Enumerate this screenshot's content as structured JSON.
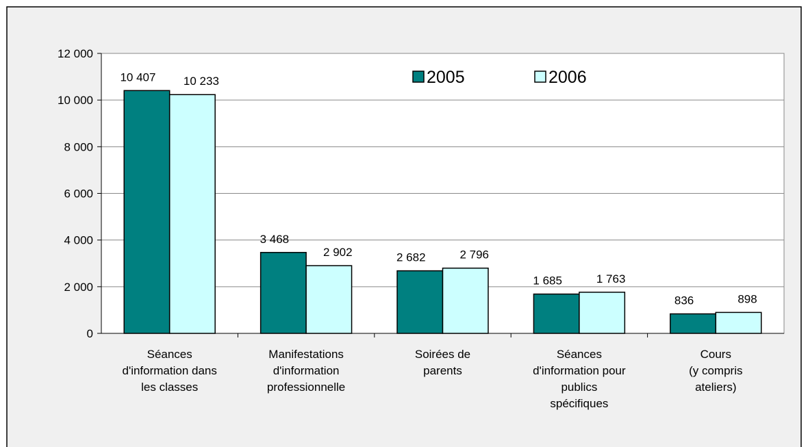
{
  "chart_data": {
    "type": "bar",
    "categories": [
      "Séances\nd'information dans\nles classes",
      "Manifestations\nd'information\nprofessionnelle",
      "Soirées de\nparents",
      "Séances\nd'information pour\npublics\nspécifiques",
      "Cours\n(y compris\nateliers)"
    ],
    "series": [
      {
        "name": "2005",
        "color": "#008080",
        "values": [
          10407,
          3468,
          2682,
          1685,
          836
        ],
        "value_labels": [
          "10 407",
          "3 468",
          "2 682",
          "1 685",
          "836"
        ]
      },
      {
        "name": "2006",
        "color": "#ccffff",
        "values": [
          10233,
          2902,
          2796,
          1763,
          898
        ],
        "value_labels": [
          "10 233",
          "2 902",
          "2 796",
          "1 763",
          "898"
        ]
      }
    ],
    "ylim": [
      0,
      12000
    ],
    "yticks": [
      0,
      {
        "value": 2000,
        "label": "2 000"
      },
      {
        "value": 4000,
        "label": "4 000"
      },
      {
        "value": 6000,
        "label": "6 000"
      },
      {
        "value": 8000,
        "label": "8 000"
      },
      {
        "value": 10000,
        "label": "10 000"
      },
      {
        "value": 12000,
        "label": "12 000"
      }
    ],
    "grid": true,
    "legend": "top"
  }
}
